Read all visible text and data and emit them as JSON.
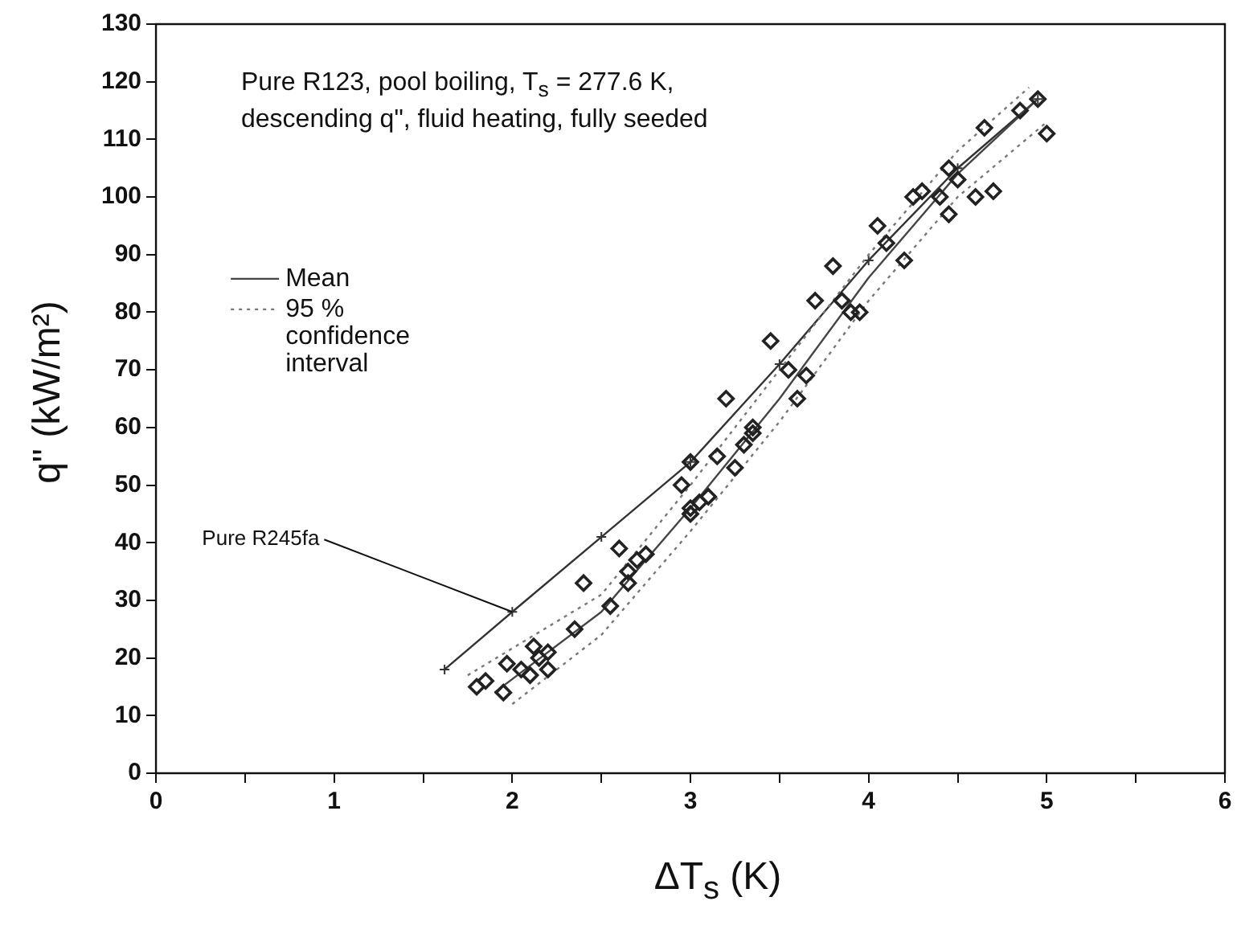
{
  "chart_data": {
    "type": "scatter",
    "xlabel": "ΔT$_{s}$ (K)",
    "ylabel": "q\" (kW/m²)",
    "xlim": [
      0,
      6
    ],
    "xticks": [
      0,
      {
        "value": 0.5,
        "label": null
      },
      1,
      {
        "value": 1.5,
        "label": null
      },
      2,
      {
        "value": 2.5,
        "label": null
      },
      3,
      {
        "value": 3.5,
        "label": null
      },
      4,
      {
        "value": 4.5,
        "label": null
      },
      5,
      {
        "value": 5.5,
        "label": null
      },
      6
    ],
    "ylim": [
      0,
      130
    ],
    "yticks": [
      0,
      10,
      20,
      30,
      40,
      50,
      60,
      70,
      80,
      90,
      100,
      110,
      120,
      130
    ],
    "grid": false,
    "legend": "left",
    "annotations": [
      "Pure R123, pool boiling, T$_{s}$ = 277.6 K, descending q\", fluid heating, fully seeded",
      {
        "text": "Pure R245fa",
        "x": 2.0,
        "y": 28
      }
    ],
    "series": [
      {
        "color": "#222222",
        "marker": "diamond",
        "x": [
          1.8,
          1.85,
          1.95,
          1.97,
          2.05,
          2.1,
          2.12,
          2.15,
          2.2,
          2.2,
          2.35,
          2.4,
          2.55,
          2.6,
          2.65,
          2.7,
          2.65,
          2.75,
          2.95,
          3.0,
          3.0,
          3.05,
          3.0,
          3.1,
          3.15,
          3.2,
          3.25,
          3.3,
          3.35,
          3.35,
          3.45,
          3.55,
          3.6,
          3.65,
          3.7,
          3.8,
          3.85,
          3.9,
          3.95,
          4.05,
          4.1,
          4.2,
          4.25,
          4.3,
          4.4,
          4.45,
          4.45,
          4.5,
          4.6,
          4.65,
          4.7,
          4.85,
          4.95,
          5.0
        ],
        "values": [
          15,
          16,
          14,
          19,
          18,
          17,
          22,
          20,
          18,
          21,
          25,
          33,
          29,
          39,
          35,
          37,
          33,
          38,
          50,
          54,
          45,
          47,
          46,
          48,
          55,
          65,
          53,
          57,
          59,
          60,
          75,
          70,
          65,
          69,
          82,
          88,
          82,
          80,
          80,
          95,
          92,
          89,
          100,
          101,
          100,
          97,
          105,
          103,
          100,
          112,
          101,
          115,
          117,
          111
        ]
      },
      {
        "type": "line",
        "name": "Mean",
        "color": "#444444",
        "marker": "none",
        "line_style": "solid",
        "x": [
          1.9,
          2.5,
          3,
          3.5,
          4,
          4.5,
          4.95
        ],
        "values": [
          14,
          28,
          46,
          65,
          86,
          104,
          117
        ]
      },
      {
        "type": "line",
        "name": "95 % confidence interval",
        "color": "#777777",
        "marker": "none",
        "line_style": "dotted",
        "x": [
          1.75,
          2.5,
          3,
          3.5,
          4,
          4.5,
          4.9
        ],
        "values": [
          17,
          31,
          50,
          70,
          90,
          108,
          119
        ]
      },
      {
        "type": "line",
        "color": "#777777",
        "marker": "none",
        "line_style": "dotted",
        "x": [
          2.0,
          2.5,
          3,
          3.5,
          4,
          4.5,
          5.0
        ],
        "values": [
          12,
          24,
          42,
          61,
          82,
          100,
          113
        ]
      },
      {
        "type": "line",
        "color": "#333333",
        "marker": "cross",
        "line_style": "solid",
        "x": [
          1.62,
          2,
          2.5,
          3,
          3.5,
          4,
          4.5,
          4.95
        ],
        "values": [
          18,
          28,
          41,
          54,
          71,
          89,
          105,
          117
        ]
      }
    ]
  }
}
